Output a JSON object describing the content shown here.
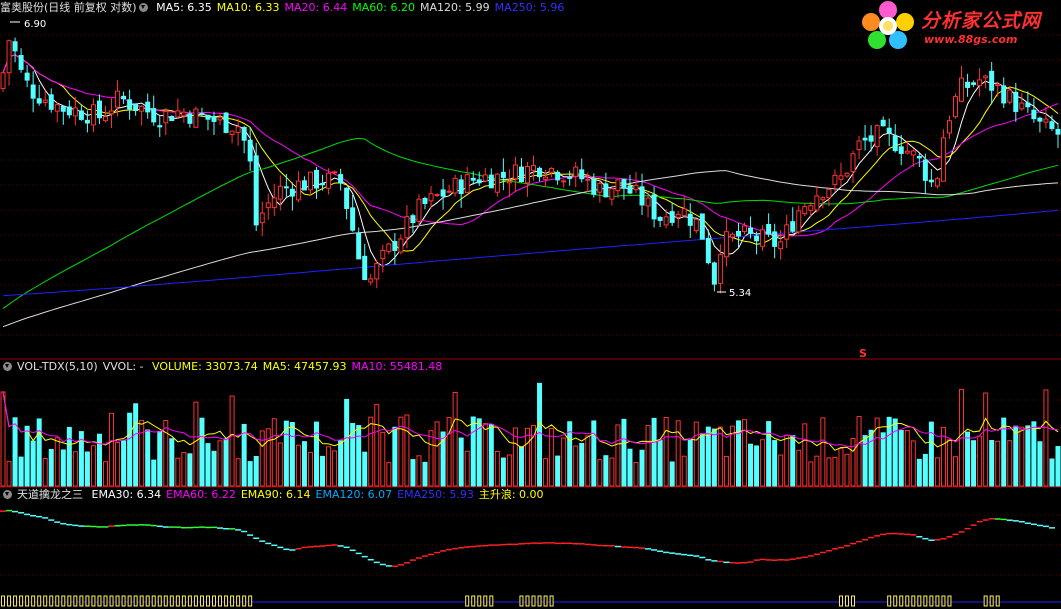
{
  "main_panel": {
    "stock_name": "富奥股份",
    "period_info": "(日线 前复权 对数)",
    "indicators": [
      {
        "label": "MA5: 6.35",
        "color": "#ffffff"
      },
      {
        "label": "MA10: 6.33",
        "color": "#ffff00"
      },
      {
        "label": "MA20: 6.44",
        "color": "#ff00ff"
      },
      {
        "label": "MA60: 6.20",
        "color": "#00ff00"
      },
      {
        "label": "MA120: 5.99",
        "color": "#dcdcdc"
      },
      {
        "label": "MA250: 5.96",
        "color": "#3030ff"
      }
    ],
    "high_label": "6.90",
    "low_label": "5.34",
    "marker": "S"
  },
  "volume_panel": {
    "name": "VOL-TDX(5,10)",
    "vvol": "VVOL: -",
    "indicators": [
      {
        "label": "VOLUME: 33073.74",
        "color": "#ffff00"
      },
      {
        "label": "MA5: 47457.93",
        "color": "#ffff00"
      },
      {
        "label": "MA10: 55481.48",
        "color": "#ff00ff"
      }
    ]
  },
  "indicator_panel": {
    "name": "天道擒龙之三",
    "indicators": [
      {
        "label": "EMA30: 6.34",
        "color": "#ffffff"
      },
      {
        "label": "EMA60: 6.22",
        "color": "#ff00ff"
      },
      {
        "label": "EMA90: 6.14",
        "color": "#ffff00"
      },
      {
        "label": "EMA120: 6.07",
        "color": "#00aaff"
      },
      {
        "label": "EMA250: 5.93",
        "color": "#3030ff"
      },
      {
        "label": "主升浪: 0.00",
        "color": "#ffff00"
      }
    ]
  },
  "logo": {
    "text": "分析家公式网",
    "url": "www.88gs.com"
  },
  "chart_data": {
    "type": "candlestick",
    "price_anchors_x": [
      0,
      10,
      20,
      30,
      45,
      60,
      80,
      100,
      120,
      140,
      160,
      180,
      200,
      220,
      240,
      250,
      255,
      265,
      280,
      300,
      320,
      340,
      350,
      360,
      370,
      380,
      400,
      420,
      440,
      460,
      480,
      500,
      520,
      540,
      560,
      580,
      600,
      620,
      640,
      660,
      680,
      700,
      715,
      720,
      740,
      760,
      780,
      800,
      820,
      840,
      860,
      880,
      900,
      920,
      935,
      945,
      960,
      980,
      1000,
      1020,
      1040,
      1060
    ],
    "price_anchors_y": [
      6.6,
      6.9,
      6.7,
      6.6,
      6.55,
      6.5,
      6.48,
      6.45,
      6.55,
      6.5,
      6.45,
      6.48,
      6.45,
      6.42,
      6.4,
      6.2,
      5.85,
      5.95,
      6.05,
      6.08,
      6.1,
      6.1,
      5.9,
      5.65,
      5.55,
      5.65,
      5.8,
      5.95,
      6.02,
      6.08,
      6.12,
      6.12,
      6.15,
      6.18,
      6.15,
      6.12,
      6.05,
      6.08,
      6.0,
      5.9,
      5.95,
      5.85,
      5.55,
      5.75,
      5.8,
      5.78,
      5.75,
      5.95,
      6.05,
      6.1,
      6.3,
      6.35,
      6.3,
      6.2,
      6.05,
      6.4,
      6.6,
      6.65,
      6.6,
      6.5,
      6.4,
      6.35
    ],
    "price_range": [
      5.2,
      7.0
    ],
    "ma_levels": {
      "MA5": 6.35,
      "MA10": 6.33,
      "MA20": 6.44,
      "MA60": 6.2,
      "MA120": 5.99,
      "MA250": 5.96
    },
    "volume_ma": {
      "MA5": 47457.93,
      "MA10": 55481.48
    },
    "last_volume": 33073.74
  }
}
